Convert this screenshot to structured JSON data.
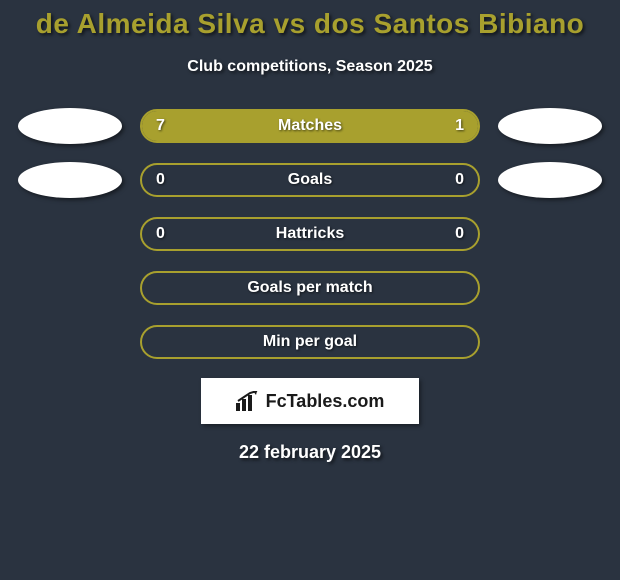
{
  "title": "de Almeida Silva vs dos Santos Bibiano",
  "subtitle": "Club competitions, Season 2025",
  "date": "22 february 2025",
  "logo_text": "FcTables.com",
  "colors": {
    "background": "#2a3340",
    "accent": "#a8a02e",
    "text": "#ffffff",
    "logo_bg": "#ffffff",
    "logo_text": "#1a1a1a"
  },
  "rows": [
    {
      "label": "Matches",
      "left_value": "7",
      "right_value": "1",
      "left_fill_pct": 80,
      "right_fill_pct": 20,
      "show_avatar_left": true,
      "show_avatar_right": true
    },
    {
      "label": "Goals",
      "left_value": "0",
      "right_value": "0",
      "left_fill_pct": 0,
      "right_fill_pct": 0,
      "show_avatar_left": true,
      "show_avatar_right": true
    },
    {
      "label": "Hattricks",
      "left_value": "0",
      "right_value": "0",
      "left_fill_pct": 0,
      "right_fill_pct": 0,
      "show_avatar_left": false,
      "show_avatar_right": false
    },
    {
      "label": "Goals per match",
      "left_value": "",
      "right_value": "",
      "left_fill_pct": 0,
      "right_fill_pct": 0,
      "show_avatar_left": false,
      "show_avatar_right": false
    },
    {
      "label": "Min per goal",
      "left_value": "",
      "right_value": "",
      "left_fill_pct": 0,
      "right_fill_pct": 0,
      "show_avatar_left": false,
      "show_avatar_right": false
    }
  ]
}
